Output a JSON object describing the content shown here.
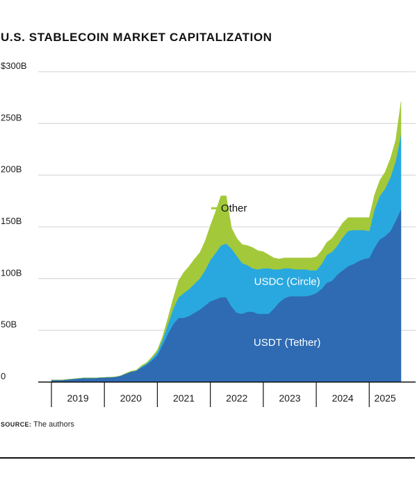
{
  "title": "U.S. STABLECOIN MARKET CAPITALIZATION",
  "source_label": "SOURCE:",
  "source_text": "The authors",
  "colors": {
    "usdt": "#2e6bb3",
    "usdc": "#29a8df",
    "other": "#a3c93a",
    "grid": "#d0d0d0",
    "axis": "#111111"
  },
  "chart_data": {
    "type": "area",
    "title": "U.S. STABLECOIN MARKET CAPITALIZATION",
    "stacked": true,
    "ylim": [
      0,
      300
    ],
    "y_ticks": [
      {
        "value": 0,
        "label": "0"
      },
      {
        "value": 50,
        "label": "50B"
      },
      {
        "value": 100,
        "label": "100B"
      },
      {
        "value": 150,
        "label": "150B"
      },
      {
        "value": 200,
        "label": "200B"
      },
      {
        "value": 250,
        "label": "250B"
      },
      {
        "value": 300,
        "label": "$300B"
      }
    ],
    "xlim": [
      2018.8,
      2025.4
    ],
    "x_boundaries": [
      2018.8,
      2019.8,
      2020.8,
      2021.8,
      2022.8,
      2023.8,
      2024.8
    ],
    "x_ticks": [
      {
        "value": 2019.3,
        "label": "2019"
      },
      {
        "value": 2020.3,
        "label": "2020"
      },
      {
        "value": 2021.3,
        "label": "2021"
      },
      {
        "value": 2022.3,
        "label": "2022"
      },
      {
        "value": 2023.3,
        "label": "2023"
      },
      {
        "value": 2024.3,
        "label": "2024"
      },
      {
        "value": 2025.1,
        "label": "2025"
      }
    ],
    "grid": "horizontal",
    "x": [
      2018.8,
      2019.0,
      2019.2,
      2019.4,
      2019.6,
      2019.8,
      2020.0,
      2020.1,
      2020.2,
      2020.3,
      2020.4,
      2020.5,
      2020.6,
      2020.7,
      2020.8,
      2020.9,
      2021.0,
      2021.1,
      2021.2,
      2021.3,
      2021.4,
      2021.5,
      2021.6,
      2021.7,
      2021.8,
      2021.9,
      2022.0,
      2022.1,
      2022.2,
      2022.3,
      2022.4,
      2022.5,
      2022.6,
      2022.7,
      2022.8,
      2022.9,
      2023.0,
      2023.1,
      2023.2,
      2023.3,
      2023.4,
      2023.5,
      2023.6,
      2023.7,
      2023.8,
      2023.9,
      2024.0,
      2024.1,
      2024.2,
      2024.3,
      2024.4,
      2024.5,
      2024.6,
      2024.7,
      2024.8,
      2024.9,
      2025.0,
      2025.1,
      2025.2,
      2025.3,
      2025.4
    ],
    "series": [
      {
        "name": "USDT (Tether)",
        "values": [
          2,
          2,
          3,
          4,
          4,
          4.5,
          5,
          6,
          8,
          10,
          11,
          14,
          17,
          21,
          26,
          36,
          47,
          56,
          62,
          62,
          64,
          67,
          70,
          74,
          78,
          80,
          82,
          82,
          73,
          67,
          66,
          68,
          68,
          66,
          66,
          66,
          71,
          77,
          81,
          83,
          83,
          83,
          83,
          84,
          86,
          90,
          96,
          98,
          104,
          108,
          112,
          114,
          117,
          119,
          120,
          130,
          138,
          141,
          146,
          156,
          167
        ]
      },
      {
        "name": "USDC (Circle)",
        "values": [
          0,
          0,
          0,
          0,
          0,
          0,
          0,
          0,
          0,
          0,
          0,
          1,
          1,
          2,
          3,
          5,
          9,
          15,
          20,
          24,
          26,
          28,
          30,
          34,
          40,
          45,
          50,
          52,
          56,
          55,
          49,
          45,
          42,
          43,
          44,
          44,
          38,
          32,
          29,
          27,
          26,
          26,
          26,
          24,
          22,
          24,
          27,
          28,
          28,
          32,
          34,
          33,
          30,
          28,
          26,
          37,
          42,
          46,
          52,
          58,
          73
        ]
      },
      {
        "name": "Other",
        "values": [
          0,
          0,
          0,
          0,
          0,
          0,
          0,
          0,
          0.5,
          0.5,
          0.5,
          1,
          1,
          1.5,
          2,
          3,
          6,
          10,
          16,
          20,
          22,
          24,
          25,
          28,
          33,
          40,
          48,
          46,
          20,
          17,
          18,
          19,
          20,
          18,
          16,
          13,
          11,
          10,
          10,
          10,
          11,
          11,
          11,
          12,
          13,
          13,
          12,
          13,
          14,
          14,
          13,
          12,
          12,
          12,
          13,
          14,
          15,
          16,
          18,
          20,
          31
        ]
      }
    ],
    "annotations": [
      {
        "series": "Other",
        "text": "Other"
      },
      {
        "series": "USDC (Circle)",
        "text": "USDC (Circle)"
      },
      {
        "series": "USDT (Tether)",
        "text": "USDT (Tether)"
      }
    ]
  }
}
